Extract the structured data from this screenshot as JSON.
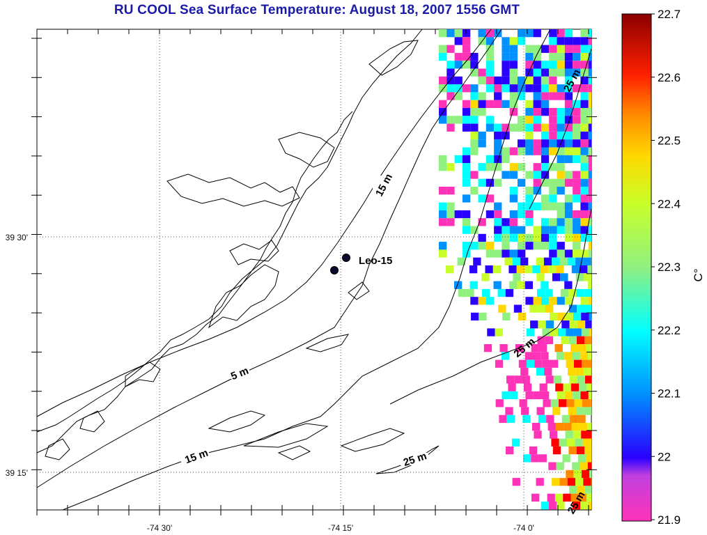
{
  "title": "RU COOL  Sea Surface Temperature:  August 18, 2007 1556 GMT",
  "x_tick_labels": [
    "-74 30'",
    "-74 15'",
    "-74 0'"
  ],
  "y_tick_labels": [
    "39 30'",
    "39 15'"
  ],
  "contour_labels": [
    "5 m",
    "15 m",
    "15 m",
    "25 m",
    "25 m",
    "25 m",
    "25 m"
  ],
  "station": {
    "name": "Leo-15"
  },
  "colorbar": {
    "min": 21.9,
    "max": 22.7,
    "tick_labels": [
      "22.7",
      "22.6",
      "22.5",
      "22.4",
      "22.3",
      "22.2",
      "22.1",
      "22",
      "21.9"
    ],
    "unit_label": "C°"
  },
  "colors": {
    "title": "#1a1aa8",
    "scale": [
      "#ff33b8",
      "#2a00ff",
      "#0090ff",
      "#00ffff",
      "#90f080",
      "#c8ff2a",
      "#ffd800",
      "#ff8c00",
      "#ff0000",
      "#8a0000"
    ]
  }
}
